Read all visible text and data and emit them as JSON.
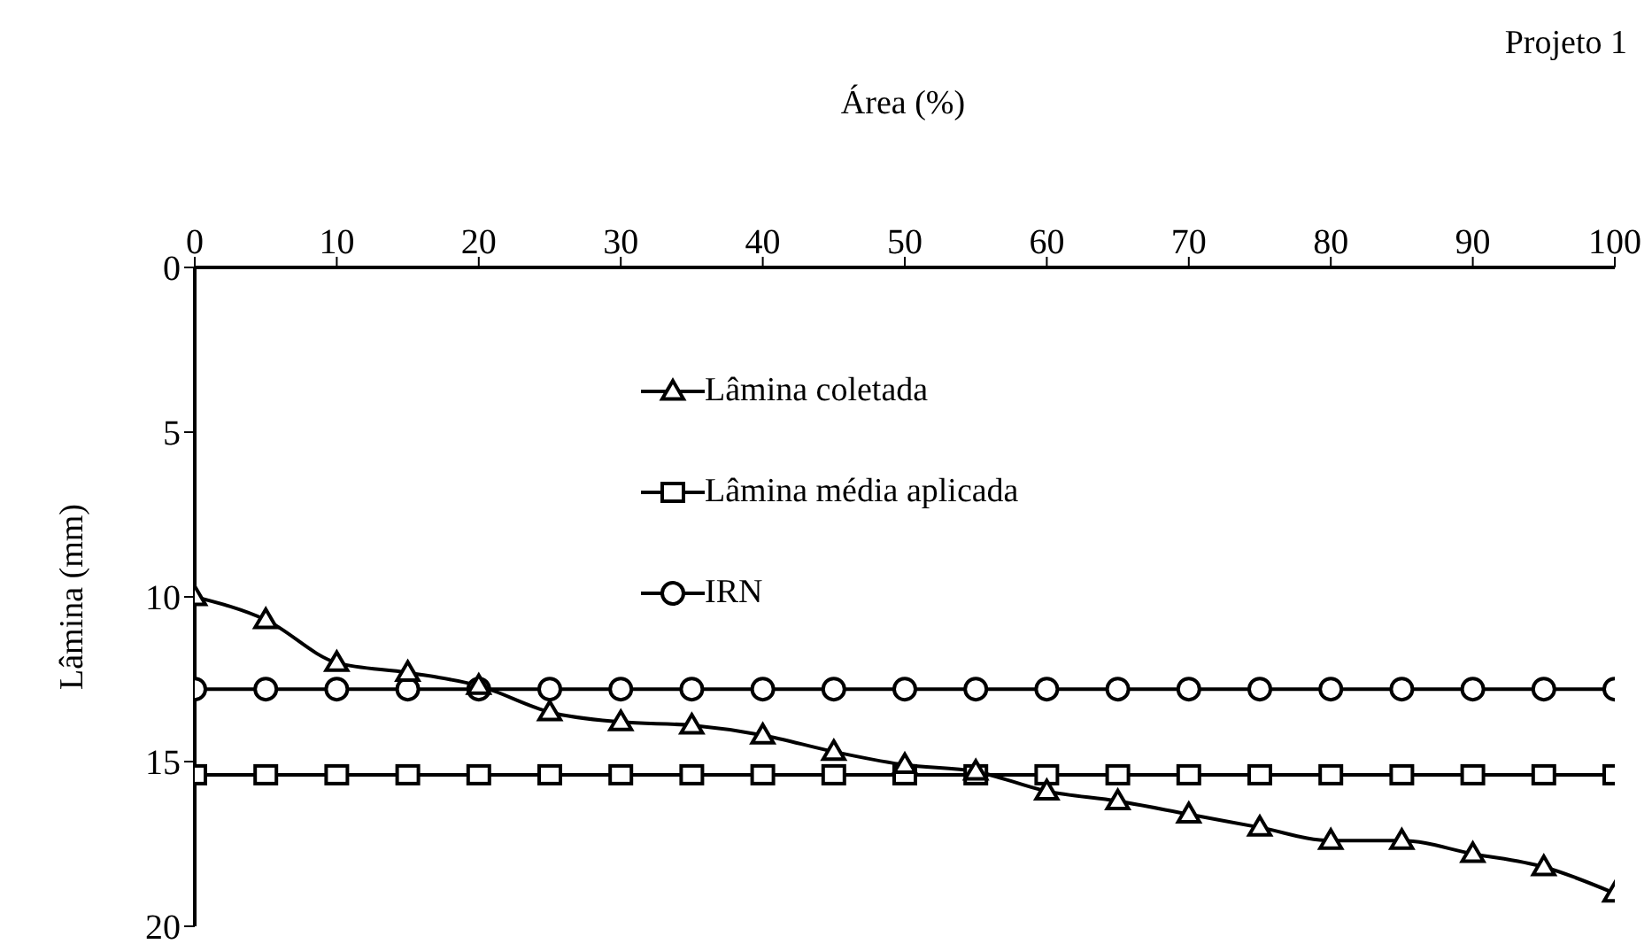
{
  "chart_data": {
    "type": "line",
    "title": "Projeto 1",
    "xlabel": "Área (%)",
    "ylabel": "Lâmina (mm)",
    "x": [
      0,
      5,
      10,
      15,
      20,
      25,
      30,
      35,
      40,
      45,
      50,
      55,
      60,
      65,
      70,
      75,
      80,
      85,
      90,
      95,
      100
    ],
    "xlim": [
      0,
      100
    ],
    "xticks": [
      0,
      10,
      20,
      30,
      40,
      50,
      60,
      70,
      80,
      90,
      100
    ],
    "ylim": [
      20,
      0
    ],
    "yticks": [
      0,
      5,
      10,
      15,
      20
    ],
    "grid": false,
    "legend": "top",
    "line_style": "solid",
    "series": [
      {
        "name": "Lâmina coletada",
        "color": "#000000",
        "marker": "triangle",
        "values": [
          10.0,
          10.7,
          12.0,
          12.3,
          12.7,
          13.5,
          13.8,
          13.9,
          14.2,
          14.7,
          15.1,
          15.3,
          15.9,
          16.2,
          16.6,
          17.0,
          17.4,
          17.4,
          17.8,
          18.2,
          19.0
        ]
      },
      {
        "name": "Lâmina média aplicada",
        "color": "#000000",
        "marker": "square",
        "values": [
          15.4,
          15.4,
          15.4,
          15.4,
          15.4,
          15.4,
          15.4,
          15.4,
          15.4,
          15.4,
          15.4,
          15.4,
          15.4,
          15.4,
          15.4,
          15.4,
          15.4,
          15.4,
          15.4,
          15.4,
          15.4
        ]
      },
      {
        "name": "IRN",
        "color": "#000000",
        "marker": "circle",
        "values": [
          12.8,
          12.8,
          12.8,
          12.8,
          12.8,
          12.8,
          12.8,
          12.8,
          12.8,
          12.8,
          12.8,
          12.8,
          12.8,
          12.8,
          12.8,
          12.8,
          12.8,
          12.8,
          12.8,
          12.8,
          12.8
        ]
      }
    ]
  }
}
